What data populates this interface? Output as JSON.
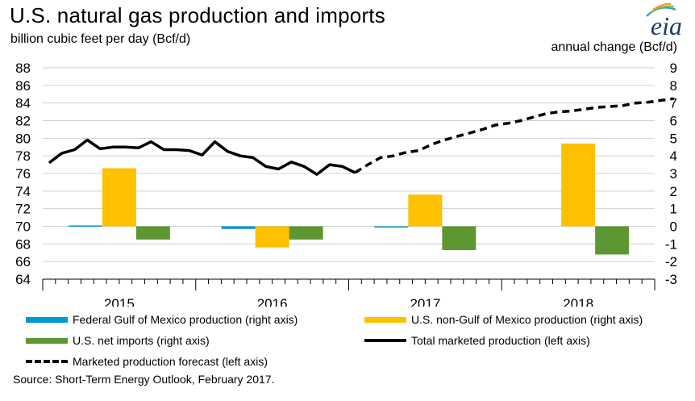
{
  "header": {
    "title": "U.S. natural gas production and imports",
    "subtitle_left": "billion cubic feet per day (Bcf/d)",
    "subtitle_right": "annual change (Bcf/d)",
    "logo_text": "eia"
  },
  "legend": {
    "federal_gom": "Federal Gulf of Mexico production (right axis)",
    "non_gom": "U.S. non-Gulf of Mexico production (right axis)",
    "net_imports": "U.S. net imports (right axis)",
    "total": "Total marketed production (left axis)",
    "forecast": "Marketed production forecast (left axis)"
  },
  "source": "Source: Short-Term Energy Outlook, February 2017.",
  "colors": {
    "federal_gom": "#0096d7",
    "non_gom": "#ffc000",
    "net_imports": "#5d9732",
    "line": "#000000"
  },
  "chart_data": {
    "type": "bar",
    "left_axis": {
      "min": 64,
      "max": 88,
      "step": 2,
      "ticks": [
        "64",
        "66",
        "68",
        "70",
        "72",
        "74",
        "76",
        "78",
        "80",
        "82",
        "84",
        "86",
        "88"
      ]
    },
    "right_axis": {
      "min": -3,
      "max": 9,
      "step": 1,
      "ticks": [
        "-3",
        "-2",
        "-1",
        "0",
        "1",
        "2",
        "3",
        "4",
        "5",
        "6",
        "7",
        "8",
        "9"
      ]
    },
    "categories": [
      "2015",
      "2016",
      "2017",
      "2018"
    ],
    "bar_series": [
      {
        "name": "Federal Gulf of Mexico production (right axis)",
        "values": [
          0.05,
          -0.15,
          -0.05,
          0.0
        ]
      },
      {
        "name": "U.S. non-Gulf of Mexico production (right axis)",
        "values": [
          3.3,
          -1.2,
          1.8,
          4.7
        ]
      },
      {
        "name": "U.S. net imports (right axis)",
        "values": [
          -0.75,
          -0.75,
          -1.35,
          -1.6
        ]
      }
    ],
    "line_series": [
      {
        "name": "Total marketed production (left axis)",
        "style": "solid",
        "values": [
          77.2,
          78.3,
          78.7,
          79.8,
          78.8,
          79.0,
          79.0,
          78.9,
          79.6,
          78.7,
          78.7,
          78.6,
          78.1,
          79.6,
          78.5,
          78.0,
          77.8,
          76.8,
          76.5,
          77.3,
          76.8,
          75.9,
          77.0,
          76.8,
          76.1
        ]
      },
      {
        "name": "Marketed production forecast (left axis)",
        "style": "dashed",
        "start_index": 24,
        "values": [
          76.1,
          77.0,
          77.8,
          78.0,
          78.4,
          78.6,
          79.3,
          79.8,
          80.2,
          80.6,
          81.0,
          81.5,
          81.7,
          82.0,
          82.4,
          82.8,
          83.0,
          83.1,
          83.3,
          83.5,
          83.6,
          83.7,
          84.0,
          84.1,
          84.3,
          84.5
        ]
      }
    ],
    "grid": "horizontal",
    "months_per_year": 12
  }
}
